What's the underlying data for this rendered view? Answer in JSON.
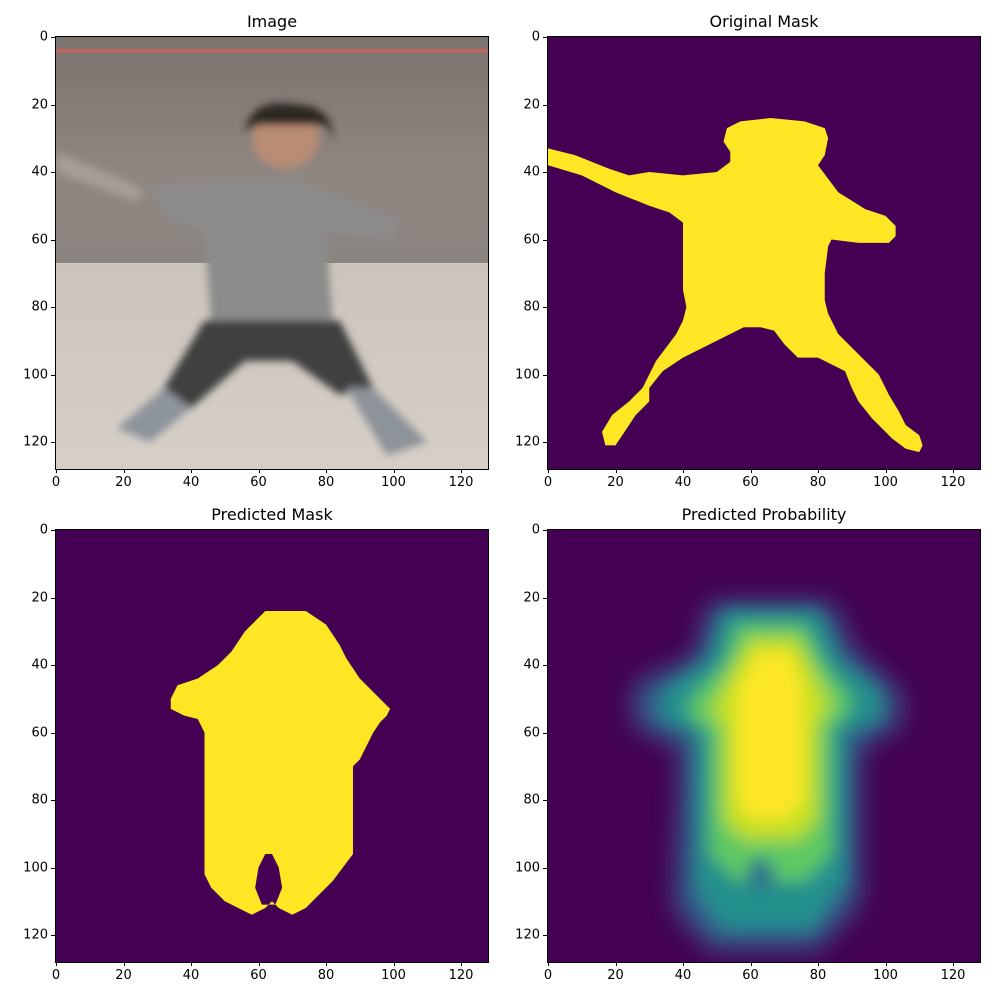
{
  "chart_data": [
    {
      "type": "heatmap",
      "title": "Image",
      "xlabel": "",
      "ylabel": "",
      "xlim": [
        0,
        128
      ],
      "ylim": [
        128,
        0
      ],
      "xticks": [
        "0",
        "20",
        "40",
        "60",
        "80",
        "100",
        "120"
      ],
      "yticks": [
        "0",
        "20",
        "40",
        "60",
        "80",
        "100",
        "120"
      ],
      "content": "photo"
    },
    {
      "type": "heatmap",
      "title": "Original Mask",
      "xlabel": "",
      "ylabel": "",
      "xlim": [
        0,
        128
      ],
      "ylim": [
        128,
        0
      ],
      "xticks": [
        "0",
        "20",
        "40",
        "60",
        "80",
        "100",
        "120"
      ],
      "yticks": [
        "0",
        "20",
        "40",
        "60",
        "80",
        "100",
        "120"
      ],
      "colormap": "viridis",
      "content": "original-mask"
    },
    {
      "type": "heatmap",
      "title": "Predicted Mask",
      "xlabel": "",
      "ylabel": "",
      "xlim": [
        0,
        128
      ],
      "ylim": [
        128,
        0
      ],
      "xticks": [
        "0",
        "20",
        "40",
        "60",
        "80",
        "100",
        "120"
      ],
      "yticks": [
        "0",
        "20",
        "40",
        "60",
        "80",
        "100",
        "120"
      ],
      "colormap": "viridis",
      "content": "predicted-mask"
    },
    {
      "type": "heatmap",
      "title": "Predicted Probability",
      "xlabel": "",
      "ylabel": "",
      "xlim": [
        0,
        128
      ],
      "ylim": [
        128,
        0
      ],
      "xticks": [
        "0",
        "20",
        "40",
        "60",
        "80",
        "100",
        "120"
      ],
      "yticks": [
        "0",
        "20",
        "40",
        "60",
        "80",
        "100",
        "120"
      ],
      "colormap": "viridis",
      "content": "predicted-probability"
    }
  ],
  "colors": {
    "viridis_low": "#440154",
    "viridis_high": "#fde725",
    "viridis_mid": "#21918c",
    "viridis_midhigh": "#5ec962"
  }
}
